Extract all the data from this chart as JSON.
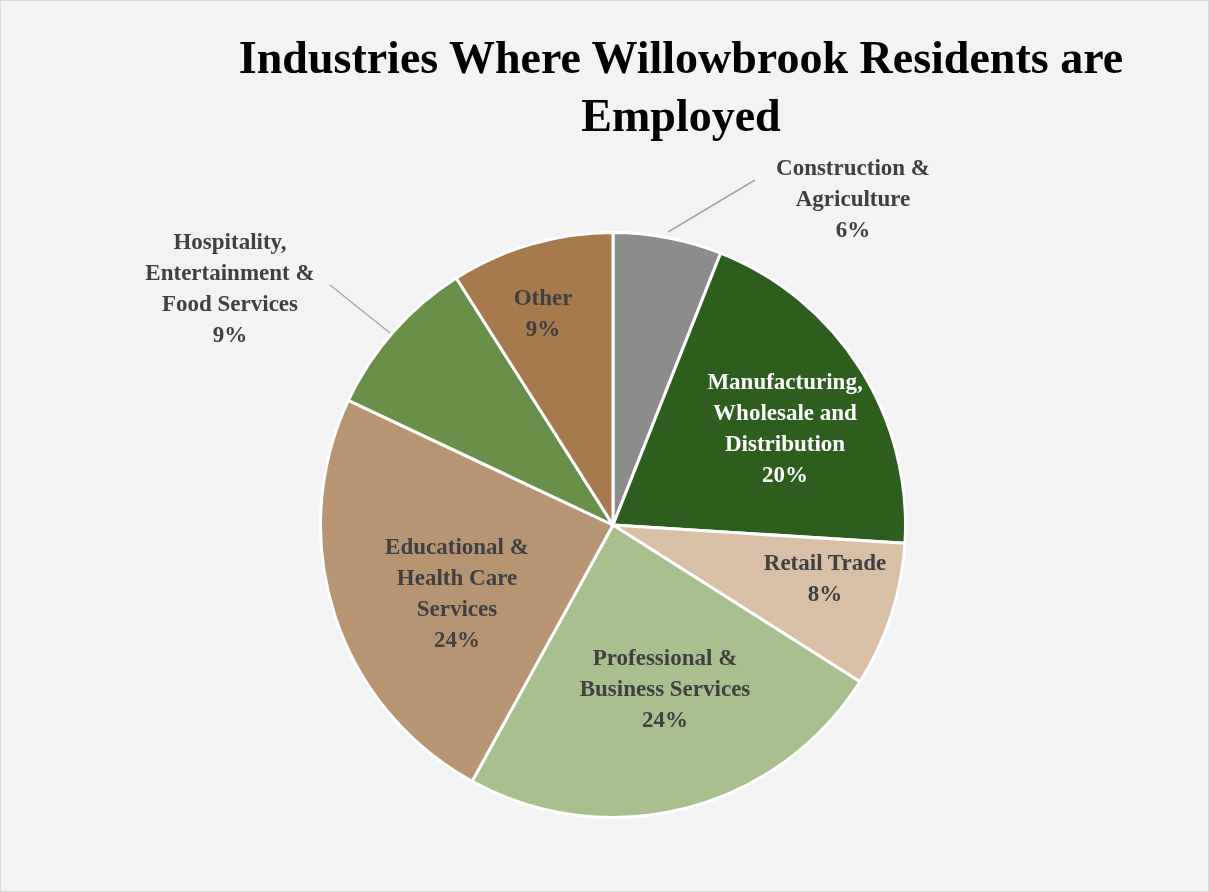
{
  "chart_data": {
    "type": "pie",
    "title": "Industries Where Willowbrook Residents are Employed",
    "categories": [
      "Construction & Agriculture",
      "Manufacturing, Wholesale and Distribution",
      "Retail Trade",
      "Professional & Business Services",
      "Educational & Health Care Services",
      "Hospitality, Entertainment & Food Services",
      "Other"
    ],
    "values": [
      6,
      20,
      8,
      24,
      24,
      9,
      9
    ],
    "value_labels": [
      "6%",
      "20%",
      "8%",
      "24%",
      "24%",
      "9%",
      "9%"
    ],
    "colors": [
      "#8c8c8c",
      "#2e5e1e",
      "#d9bfa6",
      "#a9c08e",
      "#b89572",
      "#6a8f48",
      "#a67a4c"
    ],
    "legend": false
  }
}
